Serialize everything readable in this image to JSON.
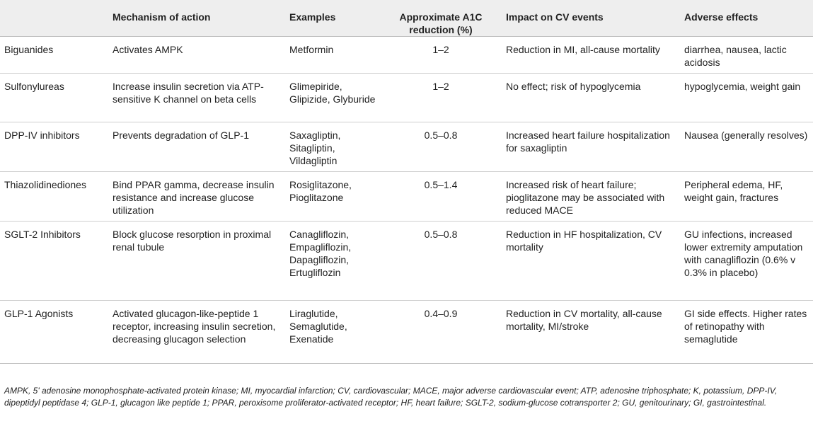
{
  "table": {
    "headers": [
      "",
      "Mechanism of action",
      "Examples",
      "Approximate A1C reduction (%)",
      "Impact on CV events",
      "Adverse effects"
    ],
    "rows": [
      {
        "drug_class": "Biguanides",
        "mechanism": "Activates AMPK",
        "examples": "Metformin",
        "a1c_reduction": "1–2",
        "cv_impact": "Reduction in MI, all-cause mortality",
        "adverse_effects": "diarrhea, nausea, lactic acidosis"
      },
      {
        "drug_class": "Sulfonylureas",
        "mechanism": "Increase insulin secretion via ATP-sensitive K channel on beta cells",
        "examples": "Glimepiride, Glipizide, Glyburide",
        "a1c_reduction": "1–2",
        "cv_impact": "No effect; risk of hypoglycemia",
        "adverse_effects": "hypoglycemia, weight gain"
      },
      {
        "drug_class": "DPP-IV inhibitors",
        "mechanism": "Prevents degradation of GLP-1",
        "examples": "Saxagliptin, Sitagliptin, Vildagliptin",
        "a1c_reduction": "0.5–0.8",
        "cv_impact": "Increased heart failure hospitalization for saxagliptin",
        "adverse_effects": "Nausea (generally resolves)"
      },
      {
        "drug_class": "Thiazolidinediones",
        "mechanism": "Bind PPAR gamma, decrease insulin resistance and increase glucose utilization",
        "examples": "Rosiglitazone, Pioglitazone",
        "a1c_reduction": "0.5–1.4",
        "cv_impact": "Increased risk of heart failure; pioglitazone may be associated with reduced MACE",
        "adverse_effects": "Peripheral edema, HF, weight gain, fractures"
      },
      {
        "drug_class": "SGLT-2 Inhibitors",
        "mechanism": "Block glucose resorption in proximal renal tubule",
        "examples": "Canagliflozin, Empagliflozin, Dapagliflozin, Ertugliflozin",
        "a1c_reduction": "0.5–0.8",
        "cv_impact": "Reduction in HF hospitalization, CV mortality",
        "adverse_effects": "GU infections, increased lower extremity amputation with canagliflozin (0.6% v 0.3% in placebo)"
      },
      {
        "drug_class": "GLP-1 Agonists",
        "mechanism": "Activated glucagon-like-peptide 1 receptor, increasing insulin secretion, decreasing glucagon selection",
        "examples": "Liraglutide, Semaglutide, Exenatide",
        "a1c_reduction": "0.4–0.9",
        "cv_impact": "Reduction in CV mortality, all-cause mortality, MI/stroke",
        "adverse_effects": "GI side effects. Higher rates of retinopathy with semaglutide"
      }
    ]
  },
  "footnote": "AMPK, 5' adenosine monophosphate-activated protein kinase; MI, myocardial infarction; CV, cardiovascular; MACE, major adverse cardiovascular event; ATP, adenosine triphosphate; K, potassium, DPP-IV, dipeptidyl peptidase 4; GLP-1, glucagon like peptide 1; PPAR, peroxisome proliferator-activated receptor; HF, heart failure; SGLT-2, sodium-glucose cotransporter 2; GU, genitourinary; GI, gastrointestinal."
}
